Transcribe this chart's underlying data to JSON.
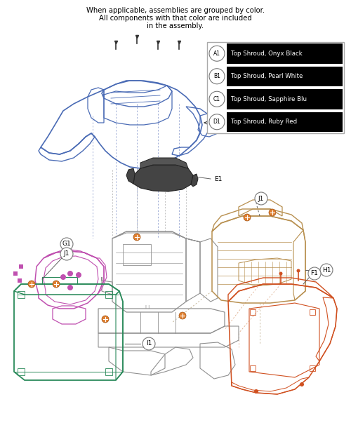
{
  "title_line1": "When applicable, assemblies are grouped by color.",
  "title_line2": "All components with that color are included",
  "title_line3": "in the assembly.",
  "legend_items": [
    {
      "label": "A1",
      "text": "Top Shroud, Onyx Black"
    },
    {
      "label": "B1",
      "text": "Top Shroud, Pearl White"
    },
    {
      "label": "C1",
      "text": "Top Shroud, Sapphire Blu"
    },
    {
      "label": "D1",
      "text": "Top Shroud, Ruby Red"
    }
  ],
  "colors": {
    "blue": "#4a6bb5",
    "purple": "#c050b0",
    "green": "#2a8a5a",
    "orange": "#e08030",
    "tan": "#b89050",
    "gray": "#909090",
    "gray_dark": "#606060",
    "orange_red": "#d05020",
    "black": "#222222",
    "label_border": "#777777"
  },
  "fig_w": 5.0,
  "fig_h": 6.33,
  "dpi": 100
}
